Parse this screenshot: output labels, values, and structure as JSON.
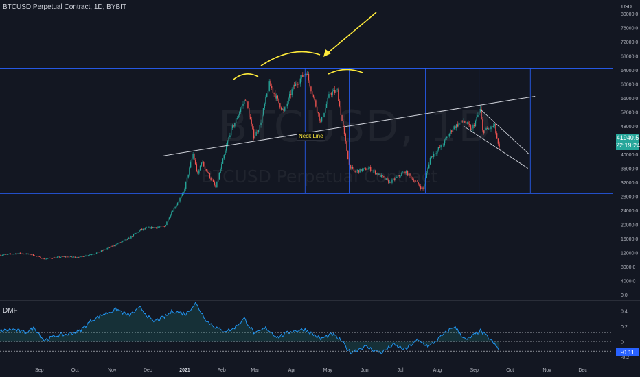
{
  "header": {
    "symbol_title": "BTCUSD Perpetual Contract, 1D, BYBIT",
    "currency": "USD",
    "watermark_symbol": "BTCUSD, 1D",
    "watermark_name": "BTCUSD Perpetual Contract"
  },
  "price_tag": {
    "price": "41940.5",
    "countdown": "22:19:24"
  },
  "annotation": {
    "neck_line_label": "Neck Line"
  },
  "indicator": {
    "name": "DMF",
    "current_value": "-0.11"
  },
  "colors": {
    "background": "#131722",
    "up_candle": "#26a69a",
    "down_candle": "#ef5350",
    "drawing_yellow": "#ffeb3b",
    "drawing_blue": "#2962ff",
    "trendline": "#d1d4dc",
    "dmf_line": "#2196f3"
  },
  "chart_data": [
    {
      "type": "candlestick",
      "title": "BTCUSD Perpetual Contract, 1D, BYBIT",
      "y_axis_ticks": [
        0,
        4000,
        8000,
        12000,
        16000,
        20000,
        24000,
        28000,
        32000,
        36000,
        40000,
        44000,
        48000,
        52000,
        56000,
        60000,
        64000,
        68000,
        72000,
        76000,
        80000
      ],
      "y_tick_labels": [
        "0.0",
        "4000.0",
        "8000.0",
        "12000.0",
        "16000.0",
        "20000.0",
        "24000.0",
        "28000.0",
        "32000.0",
        "36000.0",
        "40000.0",
        "44000.0",
        "48000.0",
        "52000.0",
        "56000.0",
        "60000.0",
        "64000.0",
        "68000.0",
        "72000.0",
        "76000.0",
        "80000.0"
      ],
      "ylim": [
        0,
        80000
      ],
      "x_axis_ticks": [
        "Sep",
        "Oct",
        "Nov",
        "Dec",
        "2021",
        "Feb",
        "Mar",
        "Apr",
        "May",
        "Jun",
        "Jul",
        "Aug",
        "Sep",
        "Oct",
        "Nov",
        "Dec"
      ],
      "x_tick_values": [
        "2020-09-01",
        "2020-10-01",
        "2020-11-01",
        "2020-12-01",
        "2021-01-01",
        "2021-02-01",
        "2021-03-01",
        "2021-04-01",
        "2021-05-01",
        "2021-06-01",
        "2021-07-01",
        "2021-08-01",
        "2021-09-01",
        "2021-10-01",
        "2021-11-01",
        "2021-12-01"
      ],
      "xlim": [
        "2020-07-30",
        "2021-12-26"
      ],
      "series": [
        {
          "price_path": [
            [
              "2020-07-30",
              11300
            ],
            [
              "2020-08-15",
              11800
            ],
            [
              "2020-08-25",
              11500
            ],
            [
              "2020-09-05",
              10200
            ],
            [
              "2020-09-20",
              10800
            ],
            [
              "2020-10-05",
              10700
            ],
            [
              "2020-10-20",
              12000
            ],
            [
              "2020-11-01",
              13800
            ],
            [
              "2020-11-15",
              16000
            ],
            [
              "2020-11-25",
              18500
            ],
            [
              "2020-12-05",
              19200
            ],
            [
              "2020-12-15",
              19400
            ],
            [
              "2020-12-20",
              23000
            ],
            [
              "2020-12-31",
              29000
            ],
            [
              "2021-01-08",
              40000
            ],
            [
              "2021-01-12",
              34000
            ],
            [
              "2021-01-15",
              38000
            ],
            [
              "2021-01-27",
              30500
            ],
            [
              "2021-02-08",
              46000
            ],
            [
              "2021-02-21",
              56000
            ],
            [
              "2021-02-28",
              45000
            ],
            [
              "2021-03-05",
              48000
            ],
            [
              "2021-03-13",
              60000
            ],
            [
              "2021-03-25",
              52000
            ],
            [
              "2021-04-02",
              59000
            ],
            [
              "2021-04-13",
              63500
            ],
            [
              "2021-04-25",
              49000
            ],
            [
              "2021-05-03",
              57500
            ],
            [
              "2021-05-09",
              58000
            ],
            [
              "2021-05-13",
              49500
            ],
            [
              "2021-05-19",
              37000
            ],
            [
              "2021-05-23",
              35000
            ],
            [
              "2021-06-05",
              36000
            ],
            [
              "2021-06-22",
              32000
            ],
            [
              "2021-07-05",
              35000
            ],
            [
              "2021-07-20",
              30000
            ],
            [
              "2021-07-26",
              39000
            ],
            [
              "2021-08-06",
              43000
            ],
            [
              "2021-08-14",
              47500
            ],
            [
              "2021-08-23",
              49500
            ],
            [
              "2021-08-30",
              47000
            ],
            [
              "2021-09-06",
              52600
            ],
            [
              "2021-09-08",
              46500
            ],
            [
              "2021-09-15",
              47500
            ],
            [
              "2021-09-18",
              48000
            ],
            [
              "2021-09-21",
              42500
            ],
            [
              "2021-09-22",
              41940
            ]
          ],
          "last_price": 41940.5
        }
      ],
      "drawings": {
        "neck_line": {
          "from": [
            "2020-12-13",
            39500
          ],
          "to": [
            "2021-10-22",
            56500
          ],
          "label": "Neck Line"
        },
        "horizontal_levels": [
          64500,
          28800
        ],
        "vertical_markers": [
          "2021-04-12",
          "2021-05-19",
          "2021-07-22",
          "2021-09-05",
          "2021-10-18"
        ],
        "falling_wedge": {
          "upper": {
            "from": [
              "2021-09-07",
              52500
            ],
            "to": [
              "2021-10-17",
              40000
            ]
          },
          "lower": {
            "from": [
              "2021-08-23",
              48000
            ],
            "to": [
              "2021-10-16",
              36000
            ]
          }
        }
      }
    },
    {
      "type": "line",
      "title": "DMF",
      "y_axis_ticks": [
        -0.2,
        0,
        0.2,
        0.4
      ],
      "y_tick_labels": [
        "-0.2",
        "0",
        "0.2",
        "0.4"
      ],
      "ylim": [
        -0.26,
        0.52
      ],
      "reference_lines": [
        0.12,
        0,
        -0.12
      ],
      "series": [
        {
          "points": [
            [
              "2020-07-30",
              0.14
            ],
            [
              "2020-08-10",
              0.16
            ],
            [
              "2020-08-20",
              0.12
            ],
            [
              "2020-08-28",
              0.18
            ],
            [
              "2020-09-05",
              0.02
            ],
            [
              "2020-09-15",
              0.08
            ],
            [
              "2020-09-25",
              0.1
            ],
            [
              "2020-10-05",
              0.14
            ],
            [
              "2020-10-15",
              0.28
            ],
            [
              "2020-10-25",
              0.36
            ],
            [
              "2020-11-05",
              0.42
            ],
            [
              "2020-11-15",
              0.34
            ],
            [
              "2020-11-25",
              0.44
            ],
            [
              "2020-12-05",
              0.26
            ],
            [
              "2020-12-15",
              0.32
            ],
            [
              "2020-12-22",
              0.4
            ],
            [
              "2021-01-02",
              0.36
            ],
            [
              "2021-01-10",
              0.5
            ],
            [
              "2021-01-20",
              0.26
            ],
            [
              "2021-02-01",
              0.14
            ],
            [
              "2021-02-10",
              0.16
            ],
            [
              "2021-02-20",
              0.3
            ],
            [
              "2021-03-01",
              0.1
            ],
            [
              "2021-03-10",
              0.18
            ],
            [
              "2021-03-20",
              0.06
            ],
            [
              "2021-04-01",
              0.14
            ],
            [
              "2021-04-12",
              0.16
            ],
            [
              "2021-04-25",
              0.04
            ],
            [
              "2021-05-05",
              0.1
            ],
            [
              "2021-05-12",
              0.02
            ],
            [
              "2021-05-20",
              -0.14
            ],
            [
              "2021-06-01",
              -0.06
            ],
            [
              "2021-06-15",
              -0.14
            ],
            [
              "2021-06-25",
              -0.04
            ],
            [
              "2021-07-05",
              -0.1
            ],
            [
              "2021-07-15",
              0.02
            ],
            [
              "2021-07-25",
              -0.06
            ],
            [
              "2021-08-05",
              0.08
            ],
            [
              "2021-08-15",
              0.2
            ],
            [
              "2021-08-25",
              0.02
            ],
            [
              "2021-09-06",
              0.14
            ],
            [
              "2021-09-14",
              0.04
            ],
            [
              "2021-09-22",
              -0.11
            ]
          ],
          "last_value": -0.11
        }
      ]
    }
  ]
}
